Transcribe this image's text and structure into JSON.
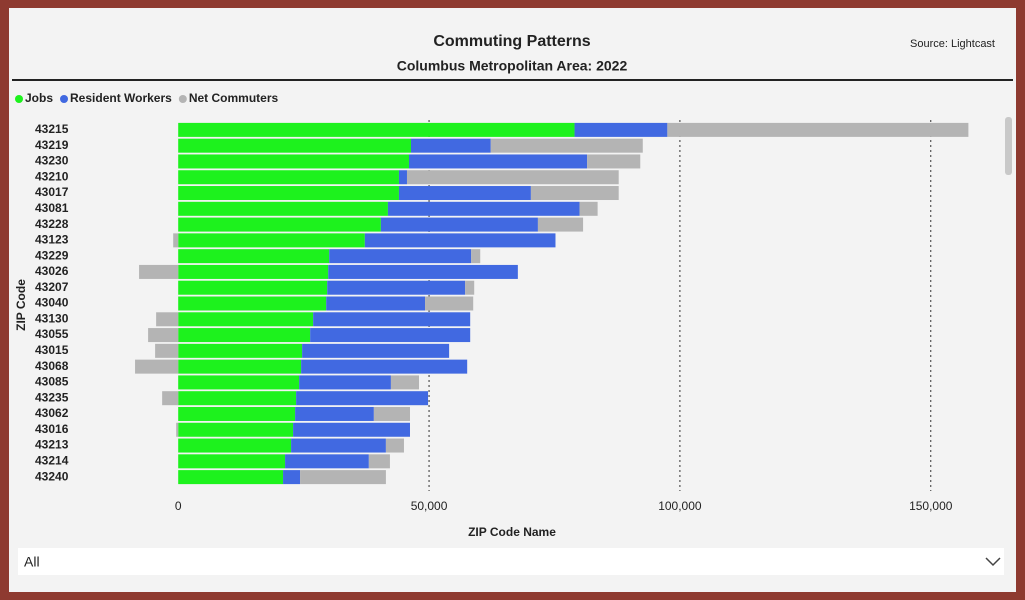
{
  "chart_data": {
    "type": "stacked-bar-horizontal",
    "title": "Commuting Patterns",
    "subtitle": "Columbus Metropolitan Area: 2022",
    "source": "Source: Lightcast",
    "y_label": "ZIP Code",
    "x_label": "ZIP Code Name",
    "categories": [
      "43215",
      "43219",
      "43230",
      "43210",
      "43017",
      "43081",
      "43228",
      "43123",
      "43229",
      "43026",
      "43207",
      "43040",
      "43130",
      "43055",
      "43015",
      "43068",
      "43085",
      "43235",
      "43062",
      "43016",
      "43213",
      "43214",
      "43240"
    ],
    "series": [
      {
        "name": "Jobs",
        "color": "#1df21d",
        "values": [
          79000,
          46400,
          46000,
          44000,
          44000,
          41800,
          40400,
          37200,
          30100,
          29900,
          29700,
          29500,
          26900,
          26300,
          24700,
          24500,
          24100,
          23500,
          23300,
          22900,
          22500,
          21300,
          20900
        ]
      },
      {
        "name": "Resident Workers",
        "color": "#4169e1",
        "values": [
          18500,
          15900,
          35500,
          1600,
          26300,
          38200,
          31300,
          38000,
          28300,
          37800,
          27500,
          19700,
          31300,
          31900,
          29300,
          33100,
          18300,
          26300,
          15700,
          23300,
          18900,
          16700,
          3400
        ]
      },
      {
        "name": "Net Commuters",
        "color": "#b4b4b4",
        "values": [
          60000,
          30300,
          10600,
          42200,
          17500,
          3600,
          9000,
          -1000,
          1800,
          -7800,
          1800,
          9600,
          -4400,
          -6000,
          -4600,
          -8600,
          5600,
          -3200,
          7200,
          -400,
          3600,
          4200,
          17100
        ]
      }
    ],
    "xlim": [
      -11600,
      163800
    ],
    "xticks": [
      0,
      {
        "value": 50000,
        "label": "50,000"
      },
      {
        "value": 100000,
        "label": "100,000"
      },
      {
        "value": 150000,
        "label": "150,000"
      }
    ],
    "grid": true,
    "legend": "top-left"
  },
  "slicer": {
    "value": "All"
  }
}
